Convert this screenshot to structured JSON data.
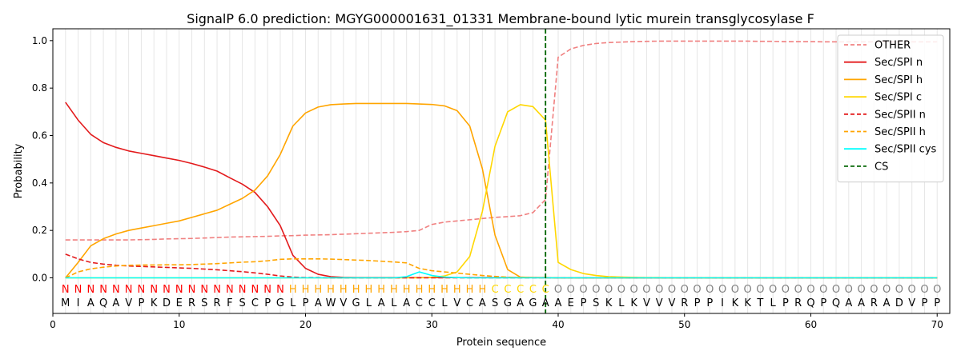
{
  "chart_data": {
    "type": "line",
    "title": "SignalP 6.0 prediction: MGYG000001631_01331 Membrane-bound lytic murein transglycosylase F",
    "xlabel": "Protein sequence",
    "ylabel": "Probability",
    "xlim": [
      0,
      71
    ],
    "ylim": [
      -0.15,
      1.05
    ],
    "xticks": [
      0,
      10,
      20,
      30,
      40,
      50,
      60,
      70
    ],
    "yticks": [
      0.0,
      0.2,
      0.4,
      0.6,
      0.8,
      1.0
    ],
    "xtick_labels": [
      "0",
      "10",
      "20",
      "30",
      "40",
      "50",
      "60",
      "70"
    ],
    "ytick_labels": [
      "0.0",
      "0.2",
      "0.4",
      "0.6",
      "0.8",
      "1.0"
    ],
    "grid": "vertical lines at each residue position",
    "legend_position": "top-right",
    "sequence": [
      "M",
      "I",
      "A",
      "Q",
      "A",
      "V",
      "P",
      "K",
      "D",
      "E",
      "R",
      "S",
      "R",
      "F",
      "S",
      "C",
      "P",
      "G",
      "L",
      "P",
      "A",
      "W",
      "V",
      "G",
      "L",
      "A",
      "L",
      "A",
      "C",
      "C",
      "L",
      "V",
      "C",
      "A",
      "S",
      "G",
      "A",
      "G",
      "A",
      "A",
      "E",
      "P",
      "S",
      "K",
      "L",
      "K",
      "V",
      "V",
      "V",
      "R",
      "P",
      "P",
      "I",
      "K",
      "K",
      "T",
      "L",
      "P",
      "R",
      "Q",
      "P",
      "Q",
      "A",
      "A",
      "R",
      "A",
      "D",
      "V",
      "P",
      "P"
    ],
    "region_labels": [
      "N",
      "N",
      "N",
      "N",
      "N",
      "N",
      "N",
      "N",
      "N",
      "N",
      "N",
      "N",
      "N",
      "N",
      "N",
      "N",
      "N",
      "N",
      "H",
      "H",
      "H",
      "H",
      "H",
      "H",
      "H",
      "H",
      "H",
      "H",
      "H",
      "H",
      "H",
      "H",
      "H",
      "H",
      "C",
      "C",
      "C",
      "C",
      "C",
      "O",
      "O",
      "O",
      "O",
      "O",
      "O",
      "O",
      "O",
      "O",
      "O",
      "O",
      "O",
      "O",
      "O",
      "O",
      "O",
      "O",
      "O",
      "O",
      "O",
      "O",
      "O",
      "O",
      "O",
      "O",
      "O",
      "O",
      "O",
      "O",
      "O",
      "O"
    ],
    "region_colors": {
      "N": "#ff0000",
      "H": "#ffa500",
      "C": "#ffd700",
      "O": "#808080"
    },
    "cleavage_site": 39,
    "series": [
      {
        "name": "OTHER",
        "color": "#f08080",
        "dash": "dashed",
        "values": [
          0.16,
          0.16,
          0.16,
          0.16,
          0.16,
          0.16,
          0.161,
          0.162,
          0.164,
          0.165,
          0.166,
          0.168,
          0.17,
          0.172,
          0.173,
          0.174,
          0.175,
          0.177,
          0.178,
          0.18,
          0.181,
          0.182,
          0.184,
          0.186,
          0.188,
          0.19,
          0.192,
          0.195,
          0.2,
          0.225,
          0.235,
          0.24,
          0.245,
          0.25,
          0.255,
          0.258,
          0.262,
          0.275,
          0.33,
          0.93,
          0.965,
          0.98,
          0.988,
          0.992,
          0.994,
          0.996,
          0.997,
          0.998,
          0.998,
          0.998,
          0.998,
          0.998,
          0.998,
          0.998,
          0.998,
          0.997,
          0.997,
          0.996,
          0.996,
          0.996,
          0.995,
          0.995,
          0.995,
          0.995,
          0.995,
          0.995,
          0.995,
          0.995,
          0.995,
          0.995
        ]
      },
      {
        "name": "Sec/SPI n",
        "color": "#e31a1c",
        "dash": "solid",
        "values": [
          0.74,
          0.665,
          0.605,
          0.57,
          0.55,
          0.535,
          0.525,
          0.515,
          0.505,
          0.495,
          0.482,
          0.467,
          0.45,
          0.422,
          0.395,
          0.36,
          0.3,
          0.22,
          0.095,
          0.04,
          0.015,
          0.005,
          0.002,
          0.001,
          0.001,
          0.001,
          0.001,
          0.001,
          0.001,
          0.001,
          0.001,
          0.001,
          0.001,
          0.001,
          0.001,
          0.001,
          0.001,
          0.001,
          0.001,
          0,
          0,
          0,
          0,
          0,
          0,
          0,
          0,
          0,
          0,
          0,
          0,
          0,
          0,
          0,
          0,
          0,
          0,
          0,
          0,
          0,
          0,
          0,
          0,
          0,
          0,
          0,
          0,
          0,
          0,
          0
        ]
      },
      {
        "name": "Sec/SPI h",
        "color": "#ffa500",
        "dash": "solid",
        "values": [
          0.0,
          0.065,
          0.135,
          0.165,
          0.185,
          0.2,
          0.21,
          0.22,
          0.23,
          0.24,
          0.255,
          0.27,
          0.285,
          0.31,
          0.335,
          0.37,
          0.43,
          0.52,
          0.64,
          0.695,
          0.72,
          0.73,
          0.733,
          0.735,
          0.735,
          0.735,
          0.735,
          0.735,
          0.733,
          0.731,
          0.725,
          0.705,
          0.64,
          0.46,
          0.18,
          0.035,
          0.003,
          0.001,
          0.001,
          0,
          0,
          0,
          0,
          0,
          0,
          0,
          0,
          0,
          0,
          0,
          0,
          0,
          0,
          0,
          0,
          0,
          0,
          0,
          0,
          0,
          0,
          0,
          0,
          0,
          0,
          0,
          0,
          0,
          0,
          0
        ]
      },
      {
        "name": "Sec/SPI c",
        "color": "#ffd700",
        "dash": "solid",
        "values": [
          0.0,
          0.0,
          0.0,
          0.0,
          0.0,
          0.0,
          0.0,
          0.0,
          0.0,
          0.0,
          0.0,
          0.0,
          0.0,
          0.0,
          0.0,
          0.0,
          0.0,
          0.0,
          0.0,
          0.0,
          0.0,
          0.0,
          0.0,
          0.0,
          0.0,
          0.0,
          0.0,
          0.0,
          0.0,
          0.002,
          0.008,
          0.025,
          0.09,
          0.28,
          0.555,
          0.7,
          0.73,
          0.722,
          0.665,
          0.065,
          0.035,
          0.018,
          0.01,
          0.005,
          0.003,
          0.002,
          0.001,
          0.001,
          0,
          0,
          0,
          0,
          0,
          0,
          0,
          0,
          0,
          0,
          0,
          0,
          0,
          0,
          0,
          0,
          0,
          0,
          0,
          0,
          0,
          0
        ]
      },
      {
        "name": "Sec/SPII n",
        "color": "#e31a1c",
        "dash": "dashed",
        "values": [
          0.1,
          0.08,
          0.065,
          0.058,
          0.053,
          0.05,
          0.048,
          0.046,
          0.044,
          0.042,
          0.04,
          0.037,
          0.034,
          0.03,
          0.026,
          0.021,
          0.015,
          0.008,
          0.003,
          0.001,
          0.001,
          0,
          0,
          0,
          0,
          0,
          0,
          0,
          0,
          0,
          0,
          0,
          0,
          0,
          0,
          0,
          0,
          0,
          0,
          0,
          0,
          0,
          0,
          0,
          0,
          0,
          0,
          0,
          0,
          0,
          0,
          0,
          0,
          0,
          0,
          0,
          0,
          0,
          0,
          0,
          0,
          0,
          0,
          0,
          0,
          0,
          0,
          0,
          0,
          0
        ]
      },
      {
        "name": "Sec/SPII h",
        "color": "#ffa500",
        "dash": "dashed",
        "values": [
          0.0,
          0.025,
          0.038,
          0.045,
          0.05,
          0.053,
          0.054,
          0.054,
          0.055,
          0.055,
          0.056,
          0.058,
          0.06,
          0.063,
          0.066,
          0.068,
          0.072,
          0.078,
          0.08,
          0.08,
          0.08,
          0.079,
          0.077,
          0.075,
          0.073,
          0.07,
          0.067,
          0.063,
          0.04,
          0.03,
          0.025,
          0.02,
          0.015,
          0.01,
          0.006,
          0.003,
          0.001,
          0.001,
          0,
          0,
          0,
          0,
          0,
          0,
          0,
          0,
          0,
          0,
          0,
          0,
          0,
          0,
          0,
          0,
          0,
          0,
          0,
          0,
          0,
          0,
          0,
          0,
          0,
          0,
          0,
          0,
          0,
          0,
          0,
          0
        ]
      },
      {
        "name": "Sec/SPII cys",
        "color": "#00ffff",
        "dash": "solid",
        "values": [
          0,
          0,
          0,
          0,
          0,
          0,
          0,
          0,
          0,
          0,
          0,
          0,
          0,
          0,
          0,
          0,
          0,
          0,
          0,
          0,
          0,
          0,
          0,
          0,
          0,
          0,
          0,
          0.005,
          0.025,
          0.01,
          0.003,
          0.001,
          0,
          0,
          0,
          0,
          0,
          0,
          0,
          0,
          0,
          0,
          0,
          0,
          0,
          0,
          0,
          0,
          0,
          0,
          0,
          0,
          0,
          0,
          0,
          0,
          0,
          0,
          0,
          0,
          0,
          0,
          0,
          0,
          0,
          0,
          0,
          0,
          0,
          0
        ]
      },
      {
        "name": "CS",
        "color": "#006400",
        "dash": "dashed",
        "values": []
      }
    ]
  }
}
